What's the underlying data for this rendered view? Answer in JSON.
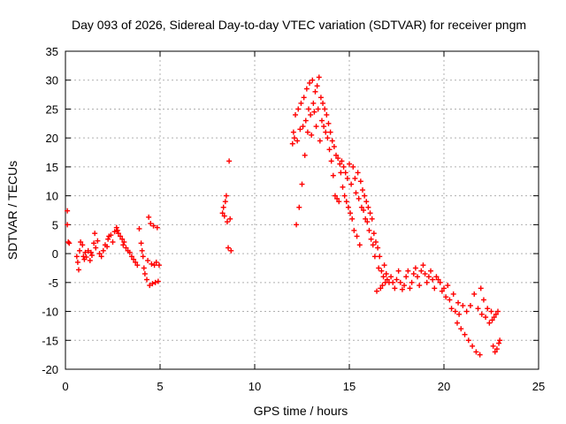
{
  "chart_data": {
    "type": "scatter",
    "title": "Day 093 of 2026, Sidereal Day-to-day VTEC variation (SDTVAR) for receiver pngm",
    "xlabel": "GPS time / hours",
    "ylabel": "SDTVAR / TECUs",
    "xlim": [
      0,
      25
    ],
    "ylim": [
      -20,
      35
    ],
    "xticks": [
      0,
      5,
      10,
      15,
      20,
      25
    ],
    "yticks": [
      -20,
      -15,
      -10,
      -5,
      0,
      5,
      10,
      15,
      20,
      25,
      30,
      35
    ],
    "grid": true,
    "marker": "+",
    "color": "#ff0000",
    "series": [
      {
        "name": "SDTVAR",
        "points": [
          [
            0.1,
            7.4
          ],
          [
            0.1,
            5.0
          ],
          [
            0.15,
            2.0
          ],
          [
            0.2,
            1.8
          ],
          [
            0.6,
            -0.5
          ],
          [
            0.65,
            -1.5
          ],
          [
            0.7,
            -2.8
          ],
          [
            0.75,
            0.5
          ],
          [
            0.8,
            2.0
          ],
          [
            0.9,
            1.5
          ],
          [
            0.95,
            -0.5
          ],
          [
            1.0,
            -1.0
          ],
          [
            1.05,
            0.2
          ],
          [
            1.1,
            -0.6
          ],
          [
            1.2,
            0.5
          ],
          [
            1.3,
            -1.2
          ],
          [
            1.35,
            0.2
          ],
          [
            1.4,
            -0.3
          ],
          [
            1.5,
            1.8
          ],
          [
            1.55,
            3.5
          ],
          [
            1.6,
            1.0
          ],
          [
            1.7,
            2.2
          ],
          [
            1.8,
            0.0
          ],
          [
            1.9,
            -0.5
          ],
          [
            2.0,
            0.5
          ],
          [
            2.1,
            1.5
          ],
          [
            2.2,
            1.2
          ],
          [
            2.25,
            2.5
          ],
          [
            2.3,
            3.0
          ],
          [
            2.4,
            3.2
          ],
          [
            2.5,
            2.0
          ],
          [
            2.6,
            3.8
          ],
          [
            2.7,
            4.5
          ],
          [
            2.75,
            4.0
          ],
          [
            2.8,
            3.5
          ],
          [
            2.9,
            3.0
          ],
          [
            3.0,
            2.5
          ],
          [
            3.05,
            1.5
          ],
          [
            3.1,
            2.0
          ],
          [
            3.2,
            1.0
          ],
          [
            3.3,
            0.5
          ],
          [
            3.4,
            0.2
          ],
          [
            3.5,
            -0.5
          ],
          [
            3.6,
            -1.0
          ],
          [
            3.7,
            -1.5
          ],
          [
            3.8,
            -2.0
          ],
          [
            3.9,
            4.3
          ],
          [
            4.0,
            1.8
          ],
          [
            4.05,
            0.5
          ],
          [
            4.1,
            -0.5
          ],
          [
            4.15,
            -2.5
          ],
          [
            4.2,
            -3.5
          ],
          [
            4.3,
            -4.5
          ],
          [
            4.35,
            -1.2
          ],
          [
            4.4,
            6.3
          ],
          [
            4.45,
            -5.5
          ],
          [
            4.5,
            5.2
          ],
          [
            4.55,
            -1.8
          ],
          [
            4.6,
            -5.2
          ],
          [
            4.65,
            4.8
          ],
          [
            4.7,
            -2.0
          ],
          [
            4.75,
            -5.0
          ],
          [
            4.8,
            -1.5
          ],
          [
            4.85,
            4.5
          ],
          [
            4.9,
            -4.8
          ],
          [
            4.95,
            -2.0
          ],
          [
            8.3,
            7.0
          ],
          [
            8.35,
            8.0
          ],
          [
            8.4,
            6.5
          ],
          [
            8.45,
            9.0
          ],
          [
            8.5,
            10.0
          ],
          [
            8.55,
            5.5
          ],
          [
            8.6,
            1.0
          ],
          [
            8.65,
            16.0
          ],
          [
            8.7,
            6.0
          ],
          [
            8.75,
            0.5
          ],
          [
            12.0,
            19.0
          ],
          [
            12.05,
            21.0
          ],
          [
            12.1,
            20.0
          ],
          [
            12.15,
            24.0
          ],
          [
            12.2,
            5.0
          ],
          [
            12.25,
            19.5
          ],
          [
            12.3,
            25.0
          ],
          [
            12.35,
            8.0
          ],
          [
            12.4,
            21.5
          ],
          [
            12.45,
            26.0
          ],
          [
            12.5,
            12.0
          ],
          [
            12.55,
            22.0
          ],
          [
            12.6,
            27.0
          ],
          [
            12.65,
            17.0
          ],
          [
            12.7,
            23.0
          ],
          [
            12.75,
            28.5
          ],
          [
            12.8,
            21.0
          ],
          [
            12.85,
            25.0
          ],
          [
            12.9,
            29.5
          ],
          [
            12.95,
            24.0
          ],
          [
            13.0,
            20.5
          ],
          [
            13.05,
            30.0
          ],
          [
            13.1,
            26.0
          ],
          [
            13.15,
            24.5
          ],
          [
            13.2,
            28.0
          ],
          [
            13.25,
            22.0
          ],
          [
            13.3,
            29.0
          ],
          [
            13.35,
            25.0
          ],
          [
            13.4,
            30.5
          ],
          [
            13.45,
            19.5
          ],
          [
            13.5,
            27.0
          ],
          [
            13.55,
            23.0
          ],
          [
            13.6,
            26.0
          ],
          [
            13.65,
            22.0
          ],
          [
            13.7,
            25.0
          ],
          [
            13.75,
            21.0
          ],
          [
            13.8,
            24.0
          ],
          [
            13.85,
            20.0
          ],
          [
            13.9,
            22.5
          ],
          [
            13.95,
            18.0
          ],
          [
            14.0,
            21.0
          ],
          [
            14.05,
            16.0
          ],
          [
            14.1,
            19.5
          ],
          [
            14.15,
            13.5
          ],
          [
            14.2,
            18.5
          ],
          [
            14.25,
            10.0
          ],
          [
            14.3,
            17.0
          ],
          [
            14.35,
            9.5
          ],
          [
            14.4,
            16.5
          ],
          [
            14.45,
            9.0
          ],
          [
            14.5,
            15.5
          ],
          [
            14.55,
            14.0
          ],
          [
            14.6,
            16.0
          ],
          [
            14.65,
            11.5
          ],
          [
            14.7,
            15.0
          ],
          [
            14.75,
            10.0
          ],
          [
            14.8,
            14.0
          ],
          [
            14.85,
            9.0
          ],
          [
            14.9,
            13.0
          ],
          [
            14.95,
            8.0
          ],
          [
            15.0,
            15.5
          ],
          [
            15.05,
            7.0
          ],
          [
            15.1,
            12.0
          ],
          [
            15.15,
            6.0
          ],
          [
            15.2,
            15.0
          ],
          [
            15.25,
            4.0
          ],
          [
            15.3,
            13.0
          ],
          [
            15.35,
            10.5
          ],
          [
            15.4,
            3.0
          ],
          [
            15.45,
            14.0
          ],
          [
            15.5,
            9.5
          ],
          [
            15.55,
            1.5
          ],
          [
            15.6,
            12.5
          ],
          [
            15.65,
            8.0
          ],
          [
            15.7,
            11.0
          ],
          [
            15.75,
            7.5
          ],
          [
            15.8,
            10.0
          ],
          [
            15.85,
            6.0
          ],
          [
            15.9,
            9.0
          ],
          [
            15.95,
            5.5
          ],
          [
            16.0,
            8.0
          ],
          [
            16.05,
            4.0
          ],
          [
            16.1,
            7.0
          ],
          [
            16.15,
            2.5
          ],
          [
            16.2,
            6.0
          ],
          [
            16.25,
            1.5
          ],
          [
            16.3,
            3.5
          ],
          [
            16.35,
            -0.5
          ],
          [
            16.4,
            2.0
          ],
          [
            16.45,
            -6.5
          ],
          [
            16.5,
            1.0
          ],
          [
            16.55,
            -2.5
          ],
          [
            16.6,
            -0.5
          ],
          [
            16.65,
            -6.0
          ],
          [
            16.7,
            -3.0
          ],
          [
            16.75,
            -5.5
          ],
          [
            16.8,
            -4.0
          ],
          [
            16.85,
            -2.0
          ],
          [
            16.9,
            -5.0
          ],
          [
            16.95,
            -3.5
          ],
          [
            17.0,
            -4.5
          ],
          [
            17.1,
            -5.0
          ],
          [
            17.2,
            -4.0
          ],
          [
            17.3,
            -5.0
          ],
          [
            17.4,
            -6.0
          ],
          [
            17.5,
            -4.5
          ],
          [
            17.6,
            -3.0
          ],
          [
            17.7,
            -5.0
          ],
          [
            17.8,
            -6.2
          ],
          [
            17.9,
            -5.5
          ],
          [
            18.0,
            -4.0
          ],
          [
            18.1,
            -3.0
          ],
          [
            18.2,
            -6.0
          ],
          [
            18.3,
            -5.0
          ],
          [
            18.4,
            -3.5
          ],
          [
            18.5,
            -2.5
          ],
          [
            18.6,
            -4.0
          ],
          [
            18.7,
            -5.5
          ],
          [
            18.8,
            -3.0
          ],
          [
            18.9,
            -2.0
          ],
          [
            19.0,
            -3.5
          ],
          [
            19.1,
            -5.0
          ],
          [
            19.2,
            -4.0
          ],
          [
            19.3,
            -3.0
          ],
          [
            19.4,
            -4.5
          ],
          [
            19.5,
            -6.0
          ],
          [
            19.6,
            -4.0
          ],
          [
            19.7,
            -4.5
          ],
          [
            19.8,
            -5.0
          ],
          [
            19.9,
            -6.5
          ],
          [
            20.0,
            -6.0
          ],
          [
            20.1,
            -7.5
          ],
          [
            20.2,
            -5.5
          ],
          [
            20.3,
            -8.0
          ],
          [
            20.4,
            -9.5
          ],
          [
            20.5,
            -7.0
          ],
          [
            20.6,
            -10.0
          ],
          [
            20.7,
            -12.0
          ],
          [
            20.75,
            -8.5
          ],
          [
            20.8,
            -10.5
          ],
          [
            20.9,
            -13.0
          ],
          [
            21.0,
            -9.0
          ],
          [
            21.1,
            -14.0
          ],
          [
            21.2,
            -10.0
          ],
          [
            21.3,
            -15.0
          ],
          [
            21.4,
            -9.0
          ],
          [
            21.5,
            -16.0
          ],
          [
            21.6,
            -7.0
          ],
          [
            21.7,
            -17.0
          ],
          [
            21.8,
            -9.5
          ],
          [
            21.9,
            -17.5
          ],
          [
            21.95,
            -6.0
          ],
          [
            22.0,
            -10.5
          ],
          [
            22.1,
            -8.0
          ],
          [
            22.2,
            -11.0
          ],
          [
            22.3,
            -9.5
          ],
          [
            22.4,
            -12.0
          ],
          [
            22.5,
            -10.0
          ],
          [
            22.55,
            -11.5
          ],
          [
            22.6,
            -16.0
          ],
          [
            22.65,
            -11.0
          ],
          [
            22.7,
            -17.0
          ],
          [
            22.75,
            -10.5
          ],
          [
            22.8,
            -16.5
          ],
          [
            22.85,
            -10.0
          ],
          [
            22.9,
            -15.5
          ],
          [
            22.95,
            -15.0
          ]
        ]
      }
    ]
  }
}
